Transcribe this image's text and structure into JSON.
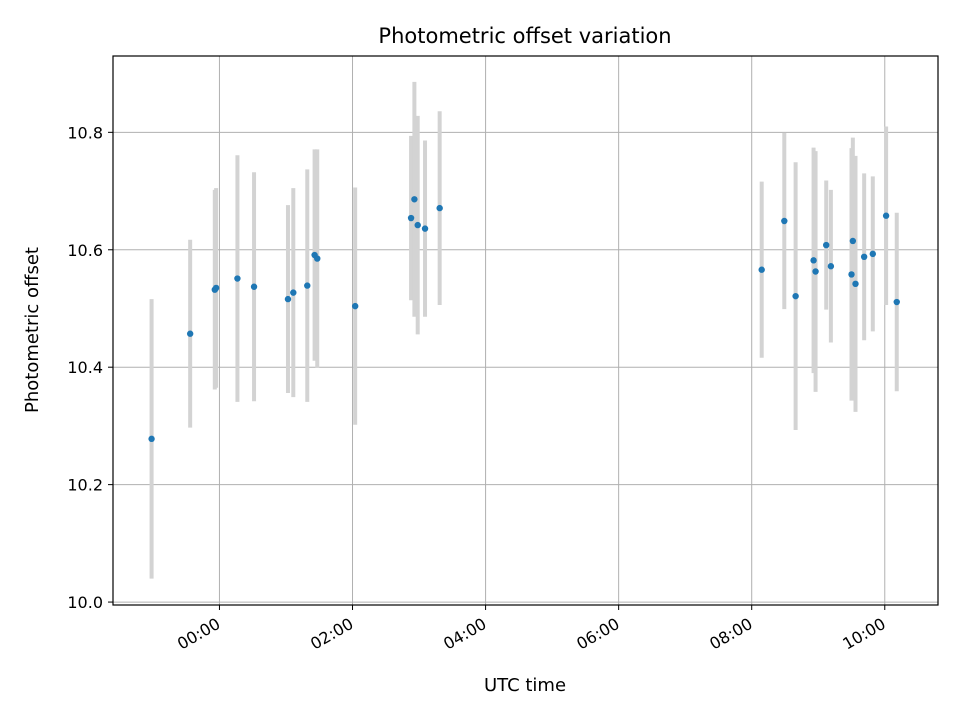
{
  "chart_data": {
    "type": "scatter",
    "title": "Photometric offset variation",
    "xlabel": "UTC time",
    "ylabel": "Photometric offset",
    "x_unit": "hours (UTC)",
    "xlim": [
      -1.6,
      10.8
    ],
    "ylim": [
      9.995,
      10.93
    ],
    "x_ticks": [
      {
        "value": 0,
        "label": "00:00"
      },
      {
        "value": 2,
        "label": "02:00"
      },
      {
        "value": 4,
        "label": "04:00"
      },
      {
        "value": 6,
        "label": "06:00"
      },
      {
        "value": 8,
        "label": "08:00"
      },
      {
        "value": 10,
        "label": "10:00"
      }
    ],
    "y_ticks": [
      {
        "value": 10.0,
        "label": "10.0"
      },
      {
        "value": 10.2,
        "label": "10.2"
      },
      {
        "value": 10.4,
        "label": "10.4"
      },
      {
        "value": 10.6,
        "label": "10.6"
      },
      {
        "value": 10.8,
        "label": "10.8"
      }
    ],
    "grid": true,
    "marker_color": "#1f77b4",
    "errorbar_color": "#d3d3d3",
    "points": [
      {
        "x": -1.02,
        "y": 10.278,
        "yerr": 0.238
      },
      {
        "x": -0.44,
        "y": 10.457,
        "yerr": 0.16
      },
      {
        "x": -0.07,
        "y": 10.532,
        "yerr": 0.17
      },
      {
        "x": -0.05,
        "y": 10.535,
        "yerr": 0.17
      },
      {
        "x": 0.27,
        "y": 10.551,
        "yerr": 0.21
      },
      {
        "x": 0.52,
        "y": 10.537,
        "yerr": 0.195
      },
      {
        "x": 1.03,
        "y": 10.516,
        "yerr": 0.16
      },
      {
        "x": 1.11,
        "y": 10.527,
        "yerr": 0.178
      },
      {
        "x": 1.32,
        "y": 10.539,
        "yerr": 0.198
      },
      {
        "x": 1.43,
        "y": 10.591,
        "yerr": 0.18
      },
      {
        "x": 1.47,
        "y": 10.585,
        "yerr": 0.186
      },
      {
        "x": 2.04,
        "y": 10.504,
        "yerr": 0.202
      },
      {
        "x": 2.88,
        "y": 10.654,
        "yerr": 0.14
      },
      {
        "x": 2.93,
        "y": 10.686,
        "yerr": 0.2
      },
      {
        "x": 2.98,
        "y": 10.642,
        "yerr": 0.186
      },
      {
        "x": 3.09,
        "y": 10.636,
        "yerr": 0.15
      },
      {
        "x": 3.31,
        "y": 10.671,
        "yerr": 0.165
      },
      {
        "x": 8.15,
        "y": 10.566,
        "yerr": 0.15
      },
      {
        "x": 8.49,
        "y": 10.649,
        "yerr": 0.15
      },
      {
        "x": 8.66,
        "y": 10.521,
        "yerr": 0.228
      },
      {
        "x": 8.93,
        "y": 10.582,
        "yerr": 0.192
      },
      {
        "x": 8.96,
        "y": 10.563,
        "yerr": 0.205
      },
      {
        "x": 9.12,
        "y": 10.608,
        "yerr": 0.11
      },
      {
        "x": 9.19,
        "y": 10.572,
        "yerr": 0.13
      },
      {
        "x": 9.5,
        "y": 10.558,
        "yerr": 0.215
      },
      {
        "x": 9.52,
        "y": 10.615,
        "yerr": 0.176
      },
      {
        "x": 9.56,
        "y": 10.542,
        "yerr": 0.218
      },
      {
        "x": 9.69,
        "y": 10.588,
        "yerr": 0.142
      },
      {
        "x": 9.82,
        "y": 10.593,
        "yerr": 0.132
      },
      {
        "x": 10.02,
        "y": 10.658,
        "yerr": 0.152
      },
      {
        "x": 10.18,
        "y": 10.511,
        "yerr": 0.152
      }
    ]
  }
}
